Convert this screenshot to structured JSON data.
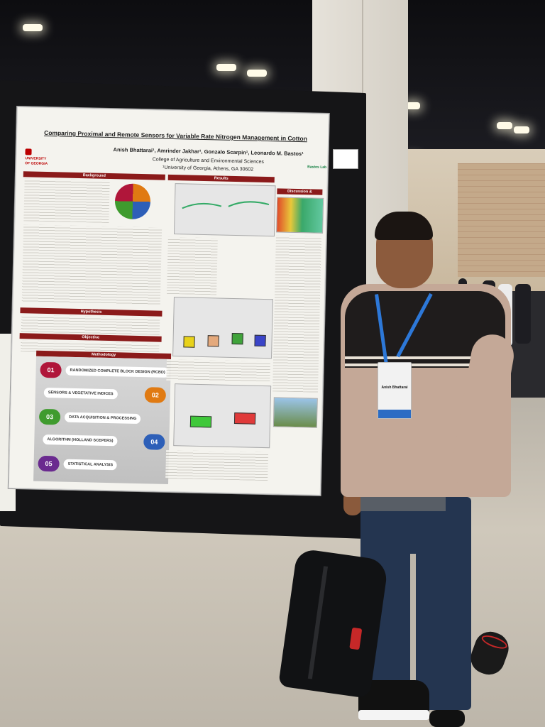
{
  "poster": {
    "title": "Comparing Proximal and Remote Sensors for Variable Rate Nitrogen Management in Cotton",
    "authors": "Anish Bhattarai¹, Amrinder Jakhar¹, Gonzalo Scarpin¹, Leonardo M. Bastos¹",
    "college": "College of Agriculture and Environmental Sciences",
    "address": "¹University of Georgia, Athens, GA 30602",
    "university_logo": "UNIVERSITY OF GEORGIA",
    "lab_logo": "Bastos Lab",
    "sections": {
      "background": "Background",
      "hypothesis": "Hypothesis",
      "objective": "Objective",
      "methodology": "Methodology",
      "results": "Results",
      "discussion": "Discussion & Conclusion"
    },
    "methodology_steps": [
      {
        "num": "01",
        "label": "RANDOMIZED COMPLETE BLOCK DESIGN (RCBD)",
        "color": "#b0163a"
      },
      {
        "num": "02",
        "label": "SENSORS & VEGETATIVE INDICES",
        "color": "#e07a12"
      },
      {
        "num": "03",
        "label": "DATA ACQUISITION & PROCESSING",
        "color": "#3f9b2e"
      },
      {
        "num": "04",
        "label": "ALGORITHM (HOLLAND SCEPERS)",
        "color": "#2d5fb8"
      },
      {
        "num": "05",
        "label": "STATISTICAL ANALYSIS",
        "color": "#6a2a8f"
      }
    ]
  },
  "badge": {
    "name": "Anish Bhattarai"
  },
  "colors": {
    "lanyard": "#2d78d8",
    "poster_header": "#8b1a1a"
  }
}
